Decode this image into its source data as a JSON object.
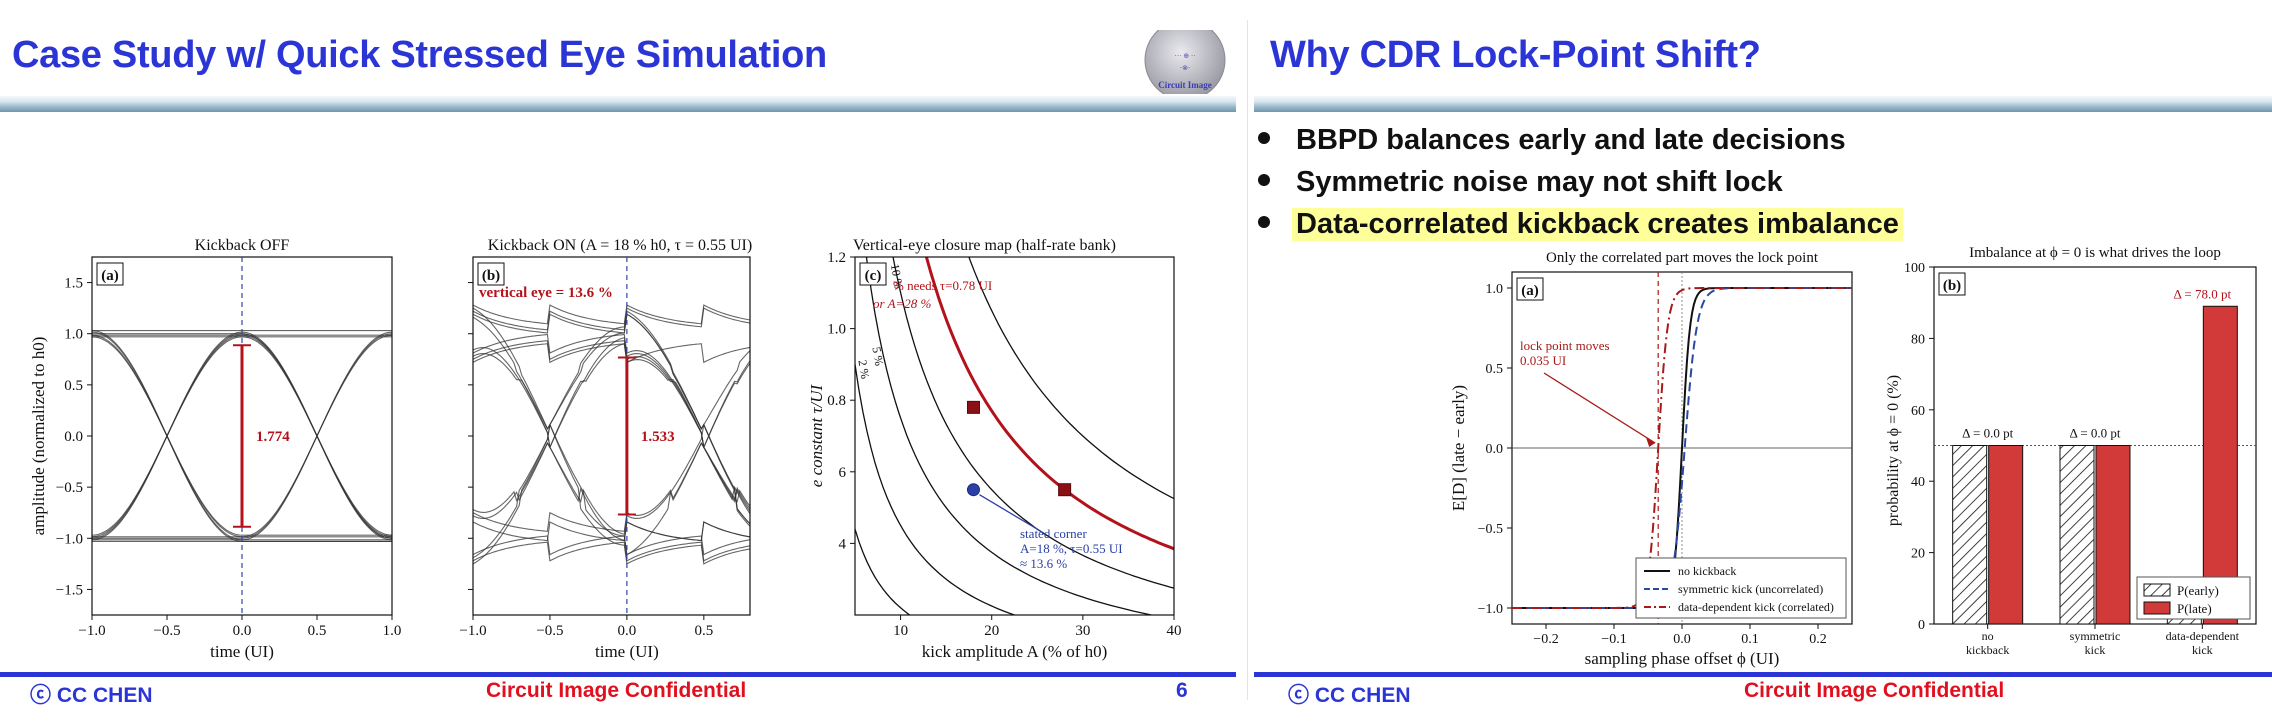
{
  "left_slide": {
    "title": "Case Study w/ Quick Stressed Eye Simulation",
    "logo_text": "Circuit Image",
    "footer": {
      "left": "ⓒ CC CHEN",
      "center": "Circuit Image Confidential",
      "page_number": "6"
    },
    "panels": [
      {
        "id": "a",
        "title": "Kickback OFF",
        "tag": "(a)",
        "xlabel": "time (UI)",
        "ylabel": "amplitude (normalized to h0)",
        "xticks": [
          "−1.0",
          "−0.5",
          "0.0",
          "0.5",
          "1.0"
        ],
        "yticks": [
          "−1.5",
          "−1.0",
          "−0.5",
          "0.0",
          "0.5",
          "1.0",
          "1.5"
        ],
        "eye_label": "1.774",
        "eye_top": 0.887,
        "eye_bottom": -0.887
      },
      {
        "id": "b",
        "title": "Kickback ON  (A = 18 % h0, τ = 0.55 UI)",
        "tag": "(b)",
        "annotation": "vertical eye = 13.6 %",
        "xlabel": "time (UI)",
        "xticks": [
          "−1.0",
          "−0.5",
          "0.0",
          "0.5"
        ],
        "eye_label": "1.533",
        "eye_top": 0.767,
        "eye_bottom": -0.767
      },
      {
        "id": "c",
        "title": "Vertical-eye closure map (half-rate bank)",
        "tag": "(c)",
        "xlabel": "kick amplitude A  (% of h0)",
        "ylabel": "e constant  τ/UI",
        "xticks": [
          "10",
          "20",
          "30",
          "40"
        ],
        "yticks": [
          "4",
          "6",
          "0.8",
          "1.0",
          "1.2"
        ],
        "contour_labels": [
          "5 %",
          "10 %",
          "% needs τ=0.78 UI",
          "or A=28 %",
          "2 %"
        ],
        "stated_corner": [
          "stated corner",
          "A=18 %, τ=0.55 UI",
          "≈ 13.6 %"
        ],
        "points": [
          {
            "A": 18,
            "tau": 0.78,
            "marker": "square"
          },
          {
            "A": 28,
            "tau": 0.55,
            "marker": "square"
          },
          {
            "A": 18,
            "tau": 0.55,
            "marker": "circle"
          }
        ]
      }
    ]
  },
  "right_slide": {
    "title": "Why CDR Lock-Point Shift?",
    "bullets": [
      "BBPD balances early and late decisions",
      "Symmetric noise may not shift lock",
      "Data-correlated kickback creates imbalance"
    ],
    "footer": {
      "left": "ⓒ CC CHEN",
      "center": "Circuit Image Confidential"
    }
  },
  "chart_data": [
    {
      "type": "line",
      "title": "Only the correlated part moves the lock point",
      "tag": "(a)",
      "xlabel": "sampling phase offset  ϕ  (UI)",
      "ylabel": "E[D]  (late − early)",
      "xlim": [
        -0.25,
        0.25
      ],
      "ylim": [
        -1.1,
        1.1
      ],
      "xticks": [
        "−0.2",
        "−0.1",
        "0.0",
        "0.1",
        "0.2"
      ],
      "yticks": [
        "−1.0",
        "−0.5",
        "0.0",
        "0.5",
        "1.0"
      ],
      "annotation": [
        "lock point moves",
        "0.035 UI"
      ],
      "series": [
        {
          "name": "no kickback",
          "center": 0.0,
          "width": 0.012,
          "color": "#111111",
          "style": "solid"
        },
        {
          "name": "symmetric kick (uncorrelated)",
          "center": 0.004,
          "width": 0.018,
          "color": "#2a4aa0",
          "style": "dashed"
        },
        {
          "name": "data-dependent kick (correlated)",
          "center": -0.035,
          "width": 0.014,
          "color": "#a81a1a",
          "style": "dashdot"
        }
      ],
      "legend": "bottom-right"
    },
    {
      "type": "bar",
      "title": "Imbalance at ϕ = 0 is what drives the loop",
      "tag": "(b)",
      "ylabel": "probability at ϕ = 0  (%)",
      "ylim": [
        0,
        100
      ],
      "yticks": [
        "0",
        "20",
        "40",
        "60",
        "80",
        "100"
      ],
      "categories": [
        [
          "no",
          "kickback"
        ],
        [
          "symmetric",
          "kick"
        ],
        [
          "data-dependent",
          "kick"
        ]
      ],
      "series": [
        {
          "name": "P(early)",
          "values": [
            50,
            50,
            11
          ]
        },
        {
          "name": "P(late)",
          "values": [
            50,
            50,
            89
          ]
        }
      ],
      "delta_labels": [
        "Δ = 0.0 pt",
        "Δ = 0.0 pt",
        "Δ = 78.0 pt"
      ],
      "legend": "bottom-right"
    }
  ]
}
